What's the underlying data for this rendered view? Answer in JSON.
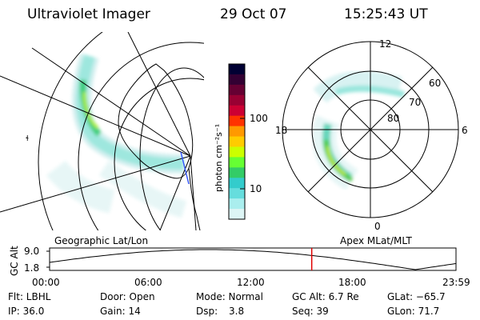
{
  "header": {
    "instrument": "Ultraviolet Imager",
    "date": "29 Oct 07",
    "time": "15:25:43 UT"
  },
  "colorbar": {
    "unit_label": "photon cm⁻²s⁻¹",
    "ticks": [
      "100",
      "10"
    ],
    "colors": [
      "#000033",
      "#330033",
      "#660033",
      "#990033",
      "#cc0033",
      "#ff3300",
      "#ff9900",
      "#ffcc00",
      "#ccff00",
      "#66ff33",
      "#33cc66",
      "#33cccc",
      "#66dddd",
      "#aaeeee",
      "#ddf5f5"
    ]
  },
  "left_panel": {
    "label": "Geographic Lat/Lon",
    "marker": "ɬ"
  },
  "right_panel": {
    "label": "Apex MLat/MLT",
    "mlt_labels": {
      "top": "12",
      "right": "6",
      "left": "18",
      "bottom": "0"
    },
    "mlat_labels": [
      "60",
      "70",
      "80"
    ]
  },
  "altitude_plot": {
    "ylabel": "GC Alt",
    "yticks": [
      "9.0",
      "1.8"
    ],
    "xticks": [
      "00:00",
      "06:00",
      "12:00",
      "18:00",
      "23:59"
    ],
    "current_time_fraction": 0.645
  },
  "footer": {
    "row1": {
      "flt": "Flt: LBHL",
      "door": "Door: Open",
      "mode": "Mode: Normal",
      "gc_alt": "GC Alt: 6.7 Re",
      "glat": "GLat: −65.7"
    },
    "row2": {
      "ip": "IP: 36.0",
      "gain": "Gain: 14",
      "dsp_label": "Dsp:",
      "dsp_value": "3.8",
      "seq": "Seq: 39",
      "glon": "GLon: 71.7"
    }
  }
}
